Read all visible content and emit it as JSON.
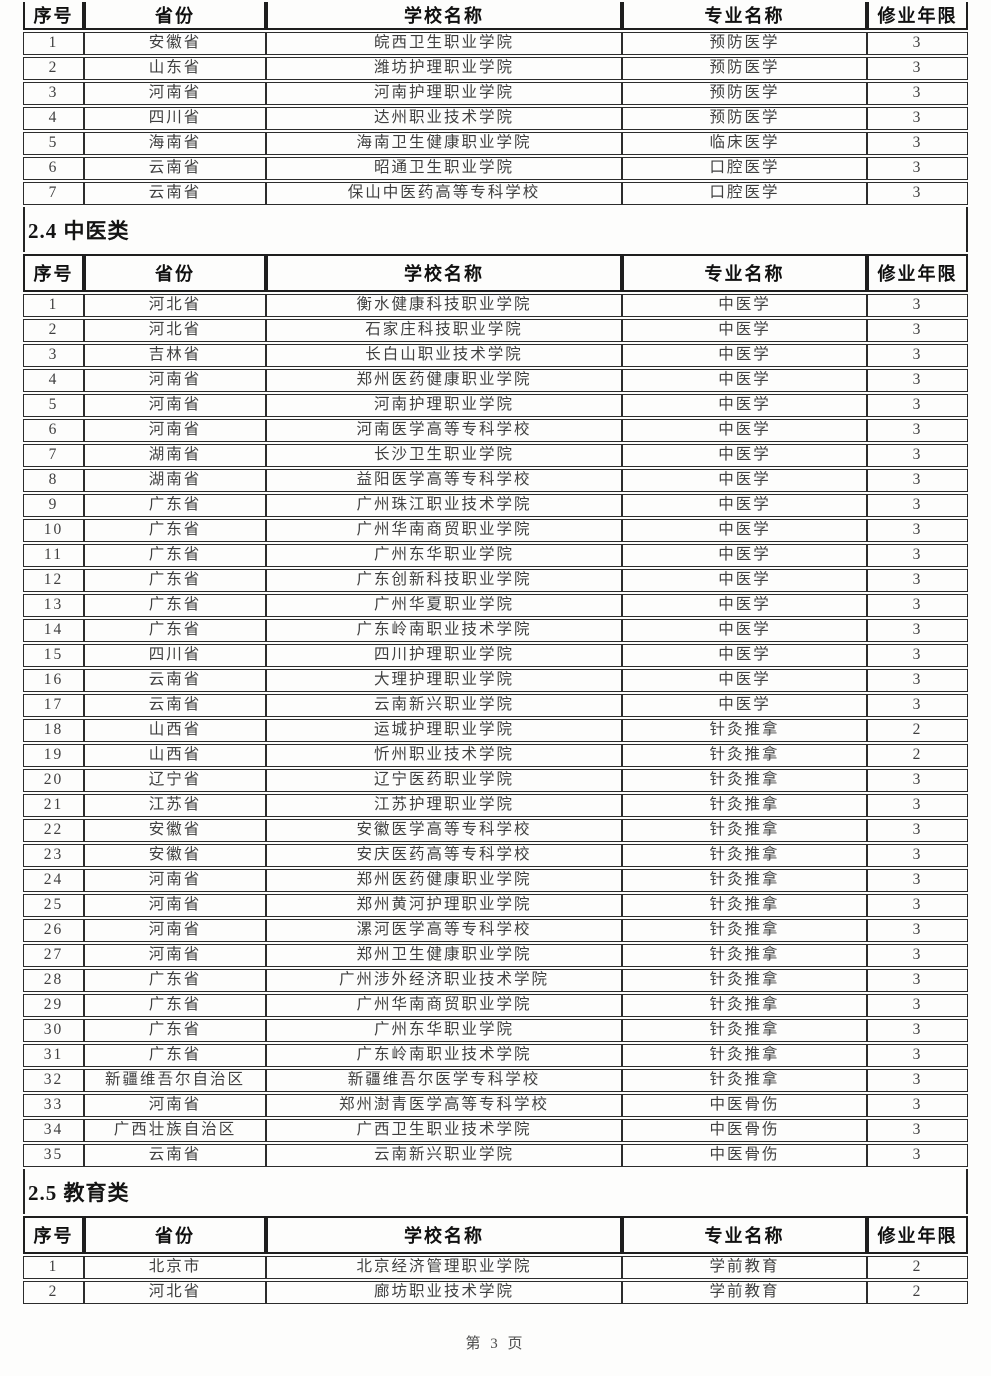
{
  "columns": [
    "序号",
    "省份",
    "学校名称",
    "专业名称",
    "修业年限"
  ],
  "column_widths": [
    "6.46%",
    "19.26%",
    "37.67%",
    "25.93%",
    "10.68%"
  ],
  "footer": "第 3 页",
  "colors": {
    "border": "#2c2c2c",
    "header_text": "#101010",
    "body_text": "#3f3f3f",
    "background": "#fdfdfc"
  },
  "sections": [
    {
      "title": "",
      "rows": [
        [
          "1",
          "安徽省",
          "皖西卫生职业学院",
          "预防医学",
          "3"
        ],
        [
          "2",
          "山东省",
          "潍坊护理职业学院",
          "预防医学",
          "3"
        ],
        [
          "3",
          "河南省",
          "河南护理职业学院",
          "预防医学",
          "3"
        ],
        [
          "4",
          "四川省",
          "达州职业技术学院",
          "预防医学",
          "3"
        ],
        [
          "5",
          "海南省",
          "海南卫生健康职业学院",
          "临床医学",
          "3"
        ],
        [
          "6",
          "云南省",
          "昭通卫生职业学院",
          "口腔医学",
          "3"
        ],
        [
          "7",
          "云南省",
          "保山中医药高等专科学校",
          "口腔医学",
          "3"
        ]
      ]
    },
    {
      "title": "2.4 中医类",
      "rows": [
        [
          "1",
          "河北省",
          "衡水健康科技职业学院",
          "中医学",
          "3"
        ],
        [
          "2",
          "河北省",
          "石家庄科技职业学院",
          "中医学",
          "3"
        ],
        [
          "3",
          "吉林省",
          "长白山职业技术学院",
          "中医学",
          "3"
        ],
        [
          "4",
          "河南省",
          "郑州医药健康职业学院",
          "中医学",
          "3"
        ],
        [
          "5",
          "河南省",
          "河南护理职业学院",
          "中医学",
          "3"
        ],
        [
          "6",
          "河南省",
          "河南医学高等专科学校",
          "中医学",
          "3"
        ],
        [
          "7",
          "湖南省",
          "长沙卫生职业学院",
          "中医学",
          "3"
        ],
        [
          "8",
          "湖南省",
          "益阳医学高等专科学校",
          "中医学",
          "3"
        ],
        [
          "9",
          "广东省",
          "广州珠江职业技术学院",
          "中医学",
          "3"
        ],
        [
          "10",
          "广东省",
          "广州华南商贸职业学院",
          "中医学",
          "3"
        ],
        [
          "11",
          "广东省",
          "广州东华职业学院",
          "中医学",
          "3"
        ],
        [
          "12",
          "广东省",
          "广东创新科技职业学院",
          "中医学",
          "3"
        ],
        [
          "13",
          "广东省",
          "广州华夏职业学院",
          "中医学",
          "3"
        ],
        [
          "14",
          "广东省",
          "广东岭南职业技术学院",
          "中医学",
          "3"
        ],
        [
          "15",
          "四川省",
          "四川护理职业学院",
          "中医学",
          "3"
        ],
        [
          "16",
          "云南省",
          "大理护理职业学院",
          "中医学",
          "3"
        ],
        [
          "17",
          "云南省",
          "云南新兴职业学院",
          "中医学",
          "3"
        ],
        [
          "18",
          "山西省",
          "运城护理职业学院",
          "针灸推拿",
          "2"
        ],
        [
          "19",
          "山西省",
          "忻州职业技术学院",
          "针灸推拿",
          "2"
        ],
        [
          "20",
          "辽宁省",
          "辽宁医药职业学院",
          "针灸推拿",
          "3"
        ],
        [
          "21",
          "江苏省",
          "江苏护理职业学院",
          "针灸推拿",
          "3"
        ],
        [
          "22",
          "安徽省",
          "安徽医学高等专科学校",
          "针灸推拿",
          "3"
        ],
        [
          "23",
          "安徽省",
          "安庆医药高等专科学校",
          "针灸推拿",
          "3"
        ],
        [
          "24",
          "河南省",
          "郑州医药健康职业学院",
          "针灸推拿",
          "3"
        ],
        [
          "25",
          "河南省",
          "郑州黄河护理职业学院",
          "针灸推拿",
          "3"
        ],
        [
          "26",
          "河南省",
          "漯河医学高等专科学校",
          "针灸推拿",
          "3"
        ],
        [
          "27",
          "河南省",
          "郑州卫生健康职业学院",
          "针灸推拿",
          "3"
        ],
        [
          "28",
          "广东省",
          "广州涉外经济职业技术学院",
          "针灸推拿",
          "3"
        ],
        [
          "29",
          "广东省",
          "广州华南商贸职业学院",
          "针灸推拿",
          "3"
        ],
        [
          "30",
          "广东省",
          "广州东华职业学院",
          "针灸推拿",
          "3"
        ],
        [
          "31",
          "广东省",
          "广东岭南职业技术学院",
          "针灸推拿",
          "3"
        ],
        [
          "32",
          "新疆维吾尔自治区",
          "新疆维吾尔医学专科学校",
          "针灸推拿",
          "3"
        ],
        [
          "33",
          "河南省",
          "郑州澍青医学高等专科学校",
          "中医骨伤",
          "3"
        ],
        [
          "34",
          "广西壮族自治区",
          "广西卫生职业技术学院",
          "中医骨伤",
          "3"
        ],
        [
          "35",
          "云南省",
          "云南新兴职业学院",
          "中医骨伤",
          "3"
        ]
      ]
    },
    {
      "title": "2.5 教育类",
      "rows": [
        [
          "1",
          "北京市",
          "北京经济管理职业学院",
          "学前教育",
          "2"
        ],
        [
          "2",
          "河北省",
          "廊坊职业技术学院",
          "学前教育",
          "2"
        ]
      ]
    }
  ]
}
